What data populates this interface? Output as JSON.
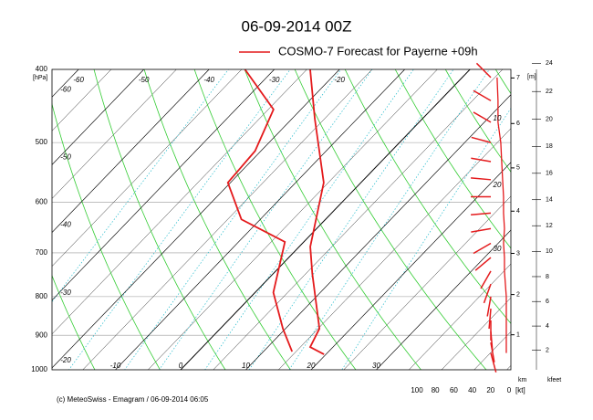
{
  "chart_data": {
    "type": "emagram",
    "title": "06-09-2014  00Z",
    "legend": {
      "label": "COSMO-7 Forecast for Payerne   +09h",
      "color": "#e41a1c"
    },
    "pressure_label": "[hPa]",
    "ylim": [
      1000,
      400
    ],
    "log": true,
    "yticks": [
      400,
      500,
      600,
      700,
      800,
      900,
      1000
    ],
    "xticks": [
      -60,
      -50,
      -40,
      -30,
      -20,
      -10,
      0,
      10,
      20,
      30
    ],
    "grid": true,
    "series": [
      {
        "name": "temperature",
        "color": "#e41a1c",
        "pressure": [
          400,
          465,
          565,
          687,
          746,
          882,
          933,
          954
        ],
        "values": [
          -24.5,
          -16.5,
          -5.7,
          1.7,
          6.0,
          15.2,
          16.5,
          19.7
        ]
      },
      {
        "name": "dewpoint",
        "color": "#e41a1c",
        "pressure": [
          400,
          452,
          513,
          565,
          632,
          677,
          790,
          882,
          946
        ],
        "values": [
          -34.5,
          -24.2,
          -20.9,
          -20.4,
          -12.9,
          -2.9,
          2.8,
          9.6,
          14.4
        ]
      }
    ],
    "wind": {
      "color": "#e41a1c",
      "axis_label": "[kt]",
      "ticks": [
        100,
        80,
        60,
        40,
        20,
        0
      ],
      "pressure": [
        410,
        440,
        470,
        500,
        530,
        560,
        590,
        620,
        650,
        680,
        710,
        740,
        770,
        800,
        830,
        860,
        890,
        920,
        950
      ],
      "speed": [
        13,
        12,
        12,
        9,
        8,
        7,
        6,
        6,
        5,
        6,
        5,
        5,
        4,
        3,
        3,
        3,
        3,
        3,
        3
      ],
      "dir": [
        315,
        300,
        300,
        285,
        280,
        275,
        270,
        265,
        260,
        240,
        230,
        210,
        200,
        190,
        185,
        180,
        175,
        170,
        165
      ]
    },
    "height": {
      "m_label": "[m]",
      "km_label": "km",
      "km_ticks": [
        1,
        2,
        3,
        4,
        5,
        6,
        7
      ],
      "kfeet_label": "kfeet",
      "kfeet_ticks": [
        2,
        4,
        6,
        8,
        10,
        12,
        14,
        16,
        18,
        20,
        22,
        24
      ]
    },
    "annotations": [
      "10",
      "20",
      "30"
    ],
    "footer": "(c) MeteoSwiss - Emagram  /  06-09-2014  06:05"
  }
}
